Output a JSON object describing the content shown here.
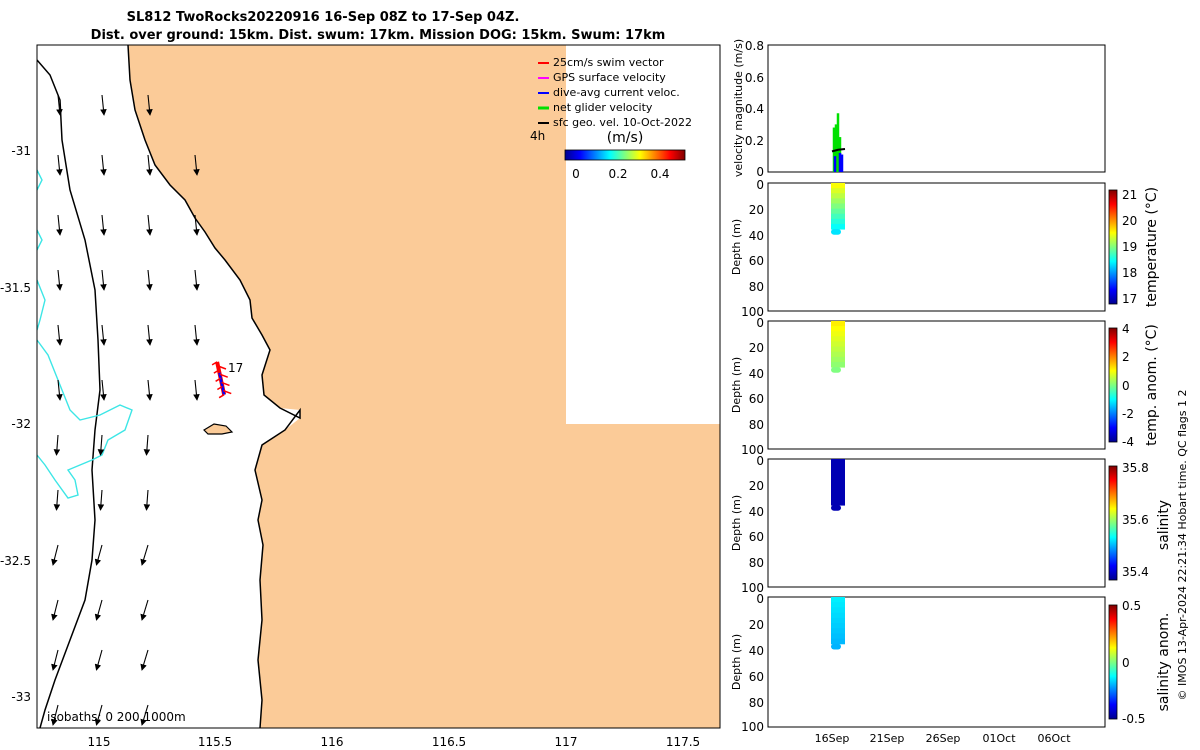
{
  "title": {
    "line1": "SL812 TwoRocks20220916 16-Sep 08Z to 17-Sep 04Z.",
    "line2": "Dist. over ground: 15km. Dist. swum: 17km. Mission DOG: 15km. Swum: 17km"
  },
  "colors": {
    "land": "#fbcb98",
    "isobath": "#3de6e6",
    "swim": "#ff0000",
    "gps": "#ff00ff",
    "current": "#0000ff",
    "net": "#00e000"
  },
  "map": {
    "legend": [
      {
        "label": "25cm/s swim vector",
        "color": "#ff0000"
      },
      {
        "label": "GPS surface velocity",
        "color": "#ff00ff"
      },
      {
        "label": "dive-avg current veloc.",
        "color": "#0000ff"
      },
      {
        "label": "net glider velocity",
        "color": "#00e000"
      },
      {
        "label": "sfc geo. vel. 10-Oct-2022",
        "color": "#000000"
      }
    ],
    "time_label": "4h",
    "colorbar": {
      "label": "(m/s)",
      "ticks": [
        "0",
        "0.2",
        "0.4"
      ]
    },
    "x_ticks": [
      "115",
      "115.5",
      "116",
      "116.5",
      "117",
      "117.5"
    ],
    "y_ticks": [
      "-31",
      "-31.5",
      "-32",
      "-32.5",
      "-33"
    ],
    "glider_label": "17",
    "isobaths_label": "isobaths: 0   200  1000m"
  },
  "chart_data": [
    {
      "type": "map",
      "xlim": [
        114.75,
        117.67
      ],
      "ylim": [
        -33.12,
        -30.62
      ],
      "glider_track": {
        "lon": [
          115.52,
          115.53,
          115.54,
          115.55
        ],
        "lat": [
          -31.78,
          -31.82,
          -31.86,
          -31.9
        ]
      }
    },
    {
      "type": "scatter",
      "ylabel": "velocity magnitude (m/s)",
      "ylim": [
        0,
        0.8
      ],
      "y_ticks": [
        "0",
        "0.2",
        "0.4",
        "0.6",
        "0.8"
      ]
    },
    {
      "type": "scatter",
      "ylabel": "Depth (m)",
      "cblabel": "temperature (°C)",
      "ylim": [
        100,
        0
      ],
      "y_ticks": [
        "0",
        "20",
        "40",
        "60",
        "80",
        "100"
      ],
      "cb_ticks": [
        "21",
        "20",
        "19",
        "18",
        "17"
      ],
      "cb_range": [
        16.7,
        21.2
      ],
      "max_depth": 40
    },
    {
      "type": "scatter",
      "ylabel": "Depth (m)",
      "cblabel": "temp. anom. (°C)",
      "ylim": [
        100,
        0
      ],
      "y_ticks": [
        "0",
        "20",
        "40",
        "60",
        "80",
        "100"
      ],
      "cb_ticks": [
        "4",
        "2",
        "0",
        "-2",
        "-4"
      ],
      "cb_range": [
        -4,
        4
      ],
      "max_depth": 40
    },
    {
      "type": "scatter",
      "ylabel": "Depth (m)",
      "cblabel": "salinity",
      "ylim": [
        100,
        0
      ],
      "y_ticks": [
        "0",
        "20",
        "40",
        "60",
        "80",
        "100"
      ],
      "cb_ticks": [
        "35.8",
        "35.6",
        "35.4"
      ],
      "cb_range": [
        35.33,
        35.85
      ],
      "max_depth": 40
    },
    {
      "type": "scatter",
      "ylabel": "Depth (m)",
      "cblabel": "salinity anom.",
      "ylim": [
        100,
        0
      ],
      "y_ticks": [
        "0",
        "20",
        "40",
        "60",
        "80",
        "100"
      ],
      "cb_ticks": [
        "0.5",
        "0",
        "-0.5"
      ],
      "cb_range": [
        -0.5,
        0.5
      ],
      "max_depth": 40
    }
  ],
  "time_axis": {
    "x_ticks": [
      "16Sep",
      "21Sep",
      "26Sep",
      "01Oct",
      "06Oct"
    ]
  },
  "footer": "© IMOS 13-Apr-2024 22:21:34 Hobart time. QC flags 1  2"
}
